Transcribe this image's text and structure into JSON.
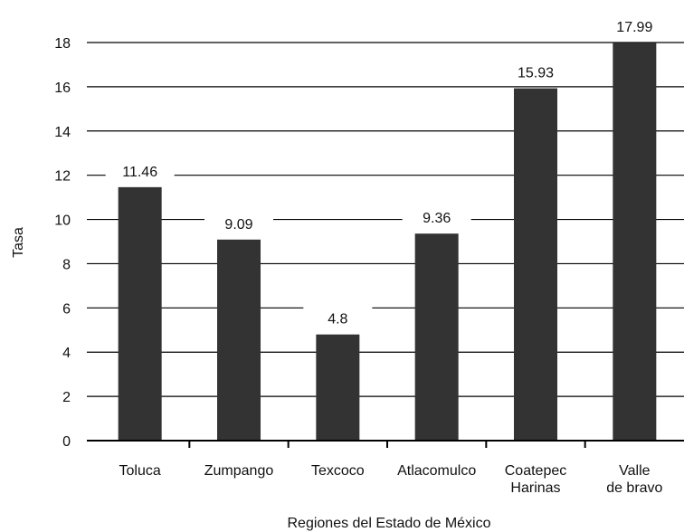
{
  "chart_data": {
    "type": "bar",
    "categories": [
      [
        "Toluca"
      ],
      [
        "Zumpango"
      ],
      [
        "Texcoco"
      ],
      [
        "Atlacomulco"
      ],
      [
        "Coatepec",
        "Harinas"
      ],
      [
        "Valle",
        "de bravo"
      ]
    ],
    "values": [
      11.46,
      9.09,
      4.8,
      9.36,
      15.93,
      17.99
    ],
    "data_labels": [
      "11.46",
      "9.09",
      "4.8",
      "9.36",
      "15.93",
      "17.99"
    ],
    "xlabel": "Regiones del Estado de México",
    "ylabel": "Tasa",
    "ylim": [
      0,
      18
    ],
    "yticks": [
      0,
      2,
      4,
      6,
      8,
      10,
      12,
      14,
      16,
      18
    ],
    "grid": true,
    "bar_color": "#333333",
    "grid_color": "#000000"
  }
}
